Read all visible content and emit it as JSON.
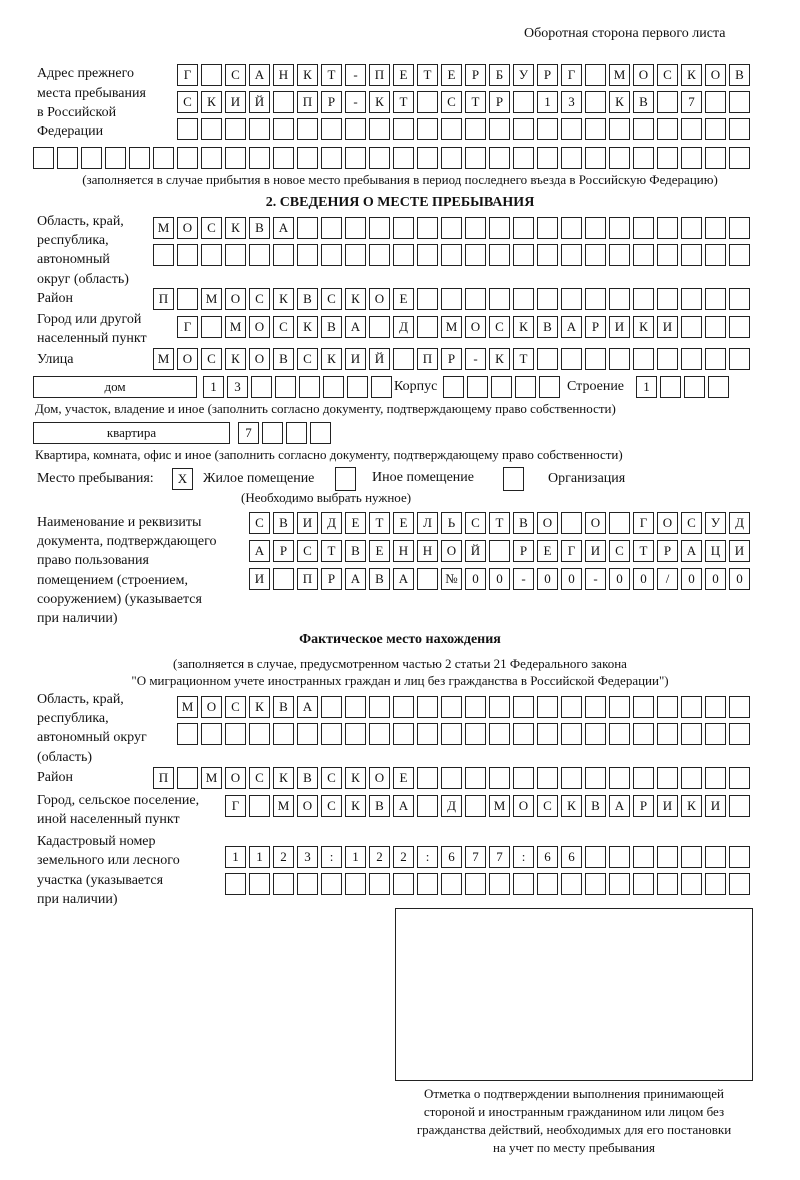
{
  "header": {
    "page_side": "Оборотная сторона первого листа"
  },
  "previous_address": {
    "label": [
      "Адрес прежнего",
      "места пребывания",
      "в Российской",
      "Федерации"
    ],
    "rows": [
      "Г САНКТ-ПЕТЕРБУРГ МОСКОВ",
      "СКИЙ ПР-КТ СТР 13 КВ 7  ",
      "                        "
    ],
    "extra_row": "                              ",
    "note": "(заполняется в случае прибытия в новое место пребывания в период последнего въезда в Российскую Федерацию)"
  },
  "section2": {
    "title": "2. СВЕДЕНИЯ О МЕСТЕ ПРЕБЫВАНИЯ",
    "region": {
      "label": [
        "Область, край,",
        "республика,",
        "автономный",
        "округ (область)"
      ],
      "rows": [
        "МОСКВА                   ",
        "                         "
      ]
    },
    "district": {
      "label": "Район",
      "row": "П МОСКВСКОЕ              "
    },
    "city": {
      "label": [
        "Город или другой",
        "населенный пункт"
      ],
      "row": "Г МОСКВА Д МОСКВАРИКИ   "
    },
    "street": {
      "label": "Улица",
      "row": "МОСКОВСКИЙ ПР-КТ         "
    },
    "house": {
      "type": "дом",
      "number": "13      ",
      "korpus_label": "Корпус",
      "korpus": "     ",
      "building_label": "Строение",
      "building": "1   ",
      "note": "Дом, участок, владение и иное (заполнить согласно документу, подтверждающему право собственности)"
    },
    "apartment": {
      "type": "квартира",
      "number": "7   ",
      "note": "Квартира, комната, офис и иное (заполнить согласно документу, подтверждающему право собственности)"
    },
    "place": {
      "label": "Место пребывания:",
      "options": [
        {
          "label": "Жилое помещение",
          "mark": "X"
        },
        {
          "label": "Иное помещение",
          "mark": ""
        },
        {
          "label": "Организация",
          "mark": ""
        }
      ],
      "note": "(Необходимо выбрать нужное)"
    },
    "document": {
      "label": [
        "Наименование и реквизиты",
        "документа, подтверждающего",
        "право пользования",
        "помещением (строением,",
        "сооружением) (указывается",
        "при наличии)"
      ],
      "rows": [
        "СВИДЕТЕЛЬСТВО О ГОСУД",
        "АРСТВЕННОЙ РЕГИСТРАЦИ",
        "И ПРАВА №00-00-00/000"
      ]
    }
  },
  "actual": {
    "title": "Фактическое место нахождения",
    "note": [
      "(заполняется в случае, предусмотренном частью 2 статьи 21 Федерального закона",
      "\"О миграционном учете иностранных граждан и лиц без гражданства в Российской Федерации\")"
    ],
    "region": {
      "label": [
        "Область, край,",
        "республика,",
        "автономный округ",
        "(область)"
      ],
      "rows": [
        "МОСКВА                  ",
        "                        "
      ]
    },
    "district": {
      "label": "Район",
      "row": "П МОСКВСКОЕ              "
    },
    "city": {
      "label": [
        "Город, сельское поселение,",
        "иной населенный пункт"
      ],
      "row": "Г МОСКВА Д МОСКВАРИКИ "
    },
    "cadastral": {
      "label": [
        "Кадастровый номер",
        "земельного или лесного",
        "участка (указывается",
        "при наличии)"
      ],
      "rows": [
        "1123:122:677:66       ",
        "                      "
      ]
    }
  },
  "confirmation": {
    "caption": [
      "Отметка о подтверждении выполнения принимающей",
      "стороной и иностранным гражданином или лицом без",
      "гражданства действий, необходимых для его постановки",
      "на учет по месту пребывания"
    ]
  }
}
